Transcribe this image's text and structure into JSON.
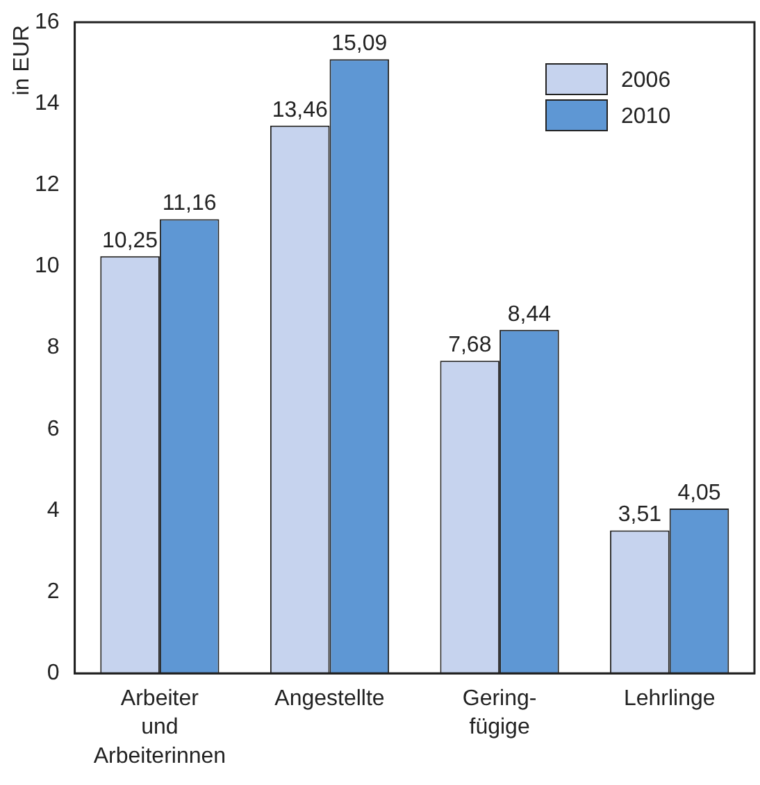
{
  "chart_data": {
    "type": "bar",
    "ylabel": "in EUR",
    "categories": [
      "Arbeiter\nund\nArbeiterinnen",
      "Angestellte",
      "Gering-\nfügige",
      "Lehrlinge"
    ],
    "series": [
      {
        "name": "2006",
        "color": "#c6d3ee",
        "values": [
          10.25,
          13.46,
          7.68,
          3.51
        ],
        "value_labels": [
          "10,25",
          "13,46",
          "7,68",
          "3,51"
        ]
      },
      {
        "name": "2010",
        "color": "#5e97d4",
        "values": [
          11.16,
          15.09,
          8.44,
          4.05
        ],
        "value_labels": [
          "11,16",
          "15,09",
          "8,44",
          "4,05"
        ]
      }
    ],
    "ylim": [
      0,
      16
    ],
    "yticks": [
      0,
      2,
      4,
      6,
      8,
      10,
      12,
      14,
      16
    ],
    "grid": false,
    "legend": "top right"
  }
}
